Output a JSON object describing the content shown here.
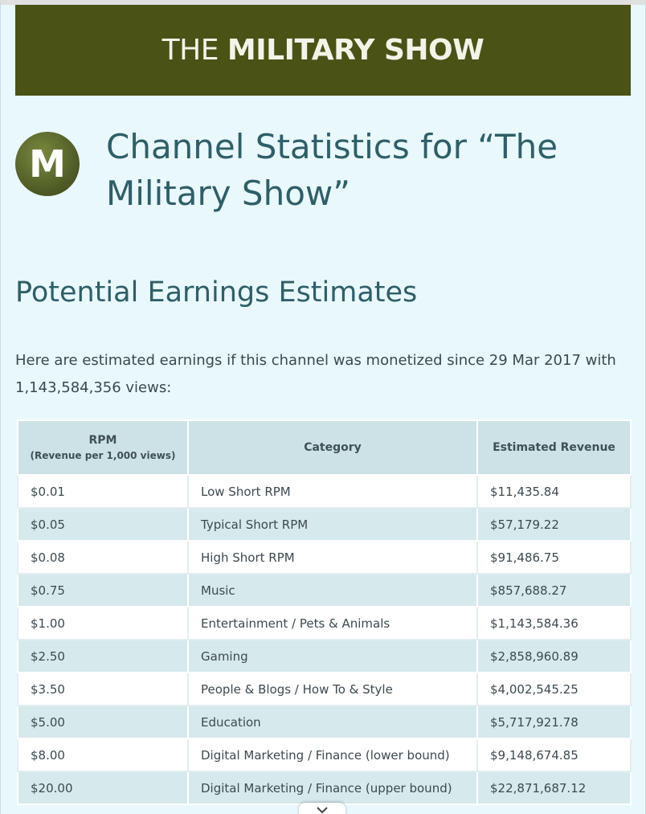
{
  "banner": {
    "text_light": "THE",
    "text_bold": "MILITARY SHOW"
  },
  "channel": {
    "avatar_letter": "M",
    "title": "Channel Statistics for “The Military Show”"
  },
  "earnings": {
    "heading": "Potential Earnings Estimates",
    "intro": "Here are estimated earnings if this channel was monetized since 29 Mar 2017 with 1,143,584,356 views:",
    "table": {
      "headers": {
        "rpm": "RPM",
        "rpm_sub": "(Revenue per 1,000 views)",
        "category": "Category",
        "revenue": "Estimated Revenue"
      },
      "rows": [
        {
          "rpm": "$0.01",
          "category": "Low Short RPM",
          "revenue": "$11,435.84"
        },
        {
          "rpm": "$0.05",
          "category": "Typical Short RPM",
          "revenue": "$57,179.22"
        },
        {
          "rpm": "$0.08",
          "category": "High Short RPM",
          "revenue": "$91,486.75"
        },
        {
          "rpm": "$0.75",
          "category": "Music",
          "revenue": "$857,688.27"
        },
        {
          "rpm": "$1.00",
          "category": "Entertainment / Pets & Animals",
          "revenue": "$1,143,584.36"
        },
        {
          "rpm": "$2.50",
          "category": "Gaming",
          "revenue": "$2,858,960.89"
        },
        {
          "rpm": "$3.50",
          "category": "People & Blogs / How To & Style",
          "revenue": "$4,002,545.25"
        },
        {
          "rpm": "$5.00",
          "category": "Education",
          "revenue": "$5,717,921.78"
        },
        {
          "rpm": "$8.00",
          "category": "Digital Marketing / Finance (lower bound)",
          "revenue": "$9,148,674.85"
        },
        {
          "rpm": "$20.00",
          "category": "Digital Marketing / Finance (upper bound)",
          "revenue": "$22,871,687.12"
        }
      ]
    }
  },
  "icons": {
    "scroll": "chevron-down-icon"
  }
}
